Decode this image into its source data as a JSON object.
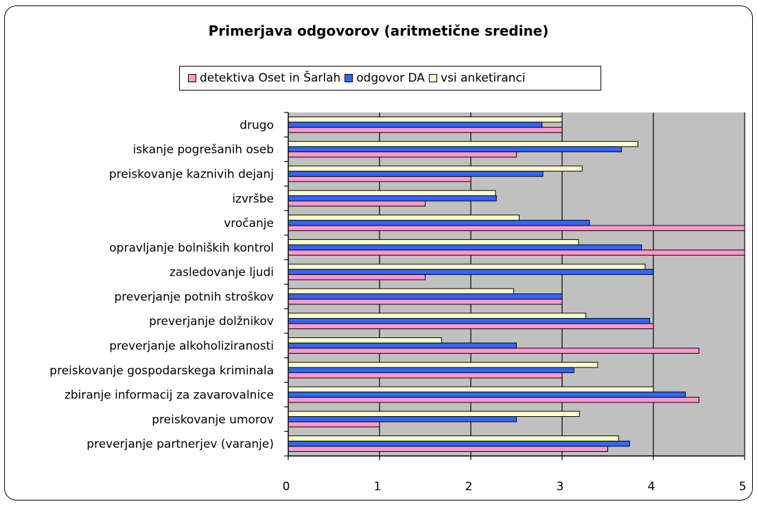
{
  "chart_data": {
    "type": "bar",
    "orientation": "horizontal",
    "title": "Primerjava odgovorov (aritmetične sredine)",
    "categories": [
      "preverjanje partnerjev (varanje)",
      "preiskovanje umorov",
      "zbiranje informacij za zavarovalnice",
      "preiskovanje gospodarskega kriminala",
      "preverjanje alkoholiziranosti",
      "preverjanje dolžnikov",
      "preverjanje potnih stroškov",
      "zasledovanje ljudi",
      "opravljanje bolniških kontrol",
      "vročanje",
      "izvršbe",
      "preiskovanje kaznivih dejanj",
      "iskanje pogrešanih oseb",
      "drugo"
    ],
    "series": [
      {
        "name": "detektiva Oset in Šarlah",
        "color": "#ff99cc",
        "values": [
          3.5,
          1.0,
          4.5,
          3.0,
          4.5,
          4.0,
          3.0,
          1.5,
          5.0,
          5.0,
          1.5,
          2.0,
          2.5,
          3.0
        ]
      },
      {
        "name": "odgovor DA",
        "color": "#3366ff",
        "values": [
          3.74,
          2.5,
          4.35,
          3.13,
          2.5,
          3.96,
          3.0,
          4.0,
          3.87,
          3.3,
          2.28,
          2.79,
          3.65,
          2.78
        ]
      },
      {
        "name": "vsi anketiranci",
        "color": "#ffffcc",
        "values": [
          3.62,
          3.19,
          4.0,
          3.39,
          1.68,
          3.26,
          2.47,
          3.91,
          3.18,
          2.53,
          2.27,
          3.22,
          3.83,
          3.0
        ]
      }
    ],
    "xlim": [
      0,
      5
    ],
    "xticks": [
      0,
      1,
      2,
      3,
      4,
      5
    ],
    "legend_position": "top",
    "grid": "vertical",
    "plot_background": "#c0c0c0"
  }
}
